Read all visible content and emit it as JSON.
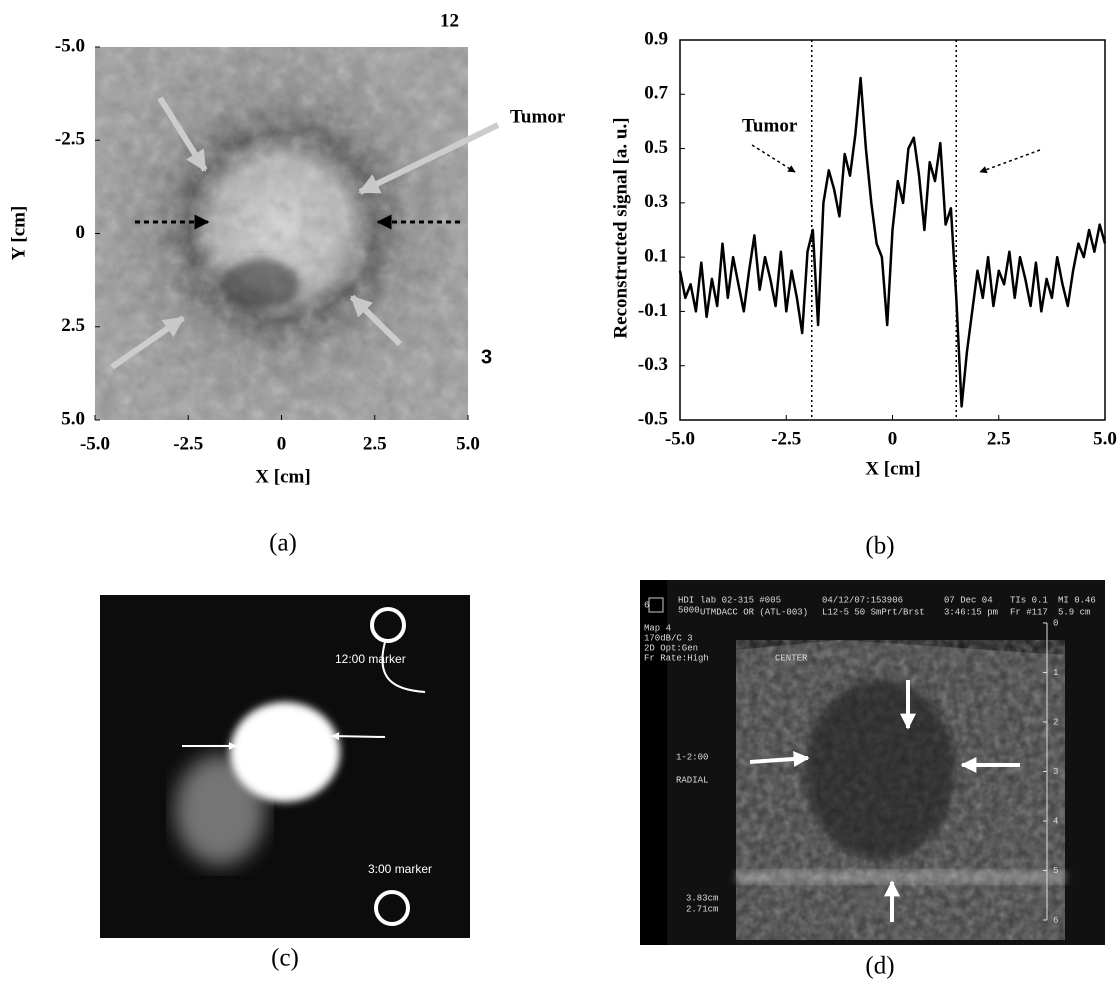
{
  "chart_data": [
    {
      "type": "image",
      "xlabel": "X [cm]",
      "ylabel": "Y [cm]",
      "xlim": [
        -5,
        5
      ],
      "ylim": [
        -5,
        5
      ],
      "y_inverted": true,
      "xticks": [
        {
          "value": -5,
          "label": "-5.0"
        },
        -2.5,
        0,
        2.5,
        {
          "value": 5,
          "label": "5.0"
        }
      ],
      "yticks": [
        {
          "value": -5,
          "label": "-5.0"
        },
        -2.5,
        0,
        2.5,
        {
          "value": 5,
          "label": "5.0"
        }
      ],
      "annotations": [
        "12",
        "3",
        "Tumor"
      ],
      "caption": "(a)"
    },
    {
      "type": "line",
      "xlabel": "X [cm]",
      "ylabel": "Reconstructed signal  [a. u.]",
      "xlim": [
        -5,
        5
      ],
      "ylim": [
        -0.5,
        0.9
      ],
      "xticks": [
        {
          "value": -5,
          "label": "-5.0"
        },
        -2.5,
        0,
        2.5,
        {
          "value": 5,
          "label": "5.0"
        }
      ],
      "yticks": [
        0.9,
        0.7,
        0.5,
        0.3,
        0.1,
        -0.1,
        -0.3,
        -0.5
      ],
      "vlines": [
        -1.9,
        1.5
      ],
      "annotation": "Tumor",
      "color": "#000000",
      "caption": "(b)",
      "x": [
        -5.0,
        -4.875,
        -4.75,
        -4.625,
        -4.5,
        -4.375,
        -4.25,
        -4.125,
        -4.0,
        -3.875,
        -3.75,
        -3.625,
        -3.5,
        -3.375,
        -3.25,
        -3.125,
        -3.0,
        -2.875,
        -2.75,
        -2.625,
        -2.5,
        -2.375,
        -2.25,
        -2.125,
        -2.0,
        -1.875,
        -1.75,
        -1.625,
        -1.5,
        -1.375,
        -1.25,
        -1.125,
        -1.0,
        -0.875,
        -0.75,
        -0.625,
        -0.5,
        -0.375,
        -0.25,
        -0.125,
        0.0,
        0.125,
        0.25,
        0.375,
        0.5,
        0.625,
        0.75,
        0.875,
        1.0,
        1.125,
        1.25,
        1.375,
        1.5,
        1.625,
        1.75,
        1.875,
        2.0,
        2.125,
        2.25,
        2.375,
        2.5,
        2.625,
        2.75,
        2.875,
        3.0,
        3.125,
        3.25,
        3.375,
        3.5,
        3.625,
        3.75,
        3.875,
        4.0,
        4.125,
        4.25,
        4.375,
        4.5,
        4.625,
        4.75,
        4.875,
        5.0
      ],
      "values": [
        0.05,
        -0.05,
        0.0,
        -0.1,
        0.08,
        -0.12,
        0.02,
        -0.08,
        0.15,
        -0.05,
        0.1,
        0.0,
        -0.1,
        0.05,
        0.18,
        -0.02,
        0.1,
        0.02,
        -0.08,
        0.12,
        -0.1,
        0.05,
        -0.05,
        -0.18,
        0.12,
        0.2,
        -0.15,
        0.3,
        0.42,
        0.35,
        0.25,
        0.48,
        0.4,
        0.55,
        0.76,
        0.5,
        0.3,
        0.15,
        0.1,
        -0.15,
        0.2,
        0.38,
        0.3,
        0.5,
        0.54,
        0.4,
        0.2,
        0.45,
        0.38,
        0.52,
        0.22,
        0.28,
        -0.05,
        -0.45,
        -0.25,
        -0.1,
        0.05,
        -0.05,
        0.1,
        -0.08,
        0.05,
        0.0,
        0.12,
        -0.05,
        0.1,
        0.02,
        -0.08,
        0.08,
        -0.1,
        0.02,
        -0.05,
        0.1,
        0.0,
        -0.08,
        0.05,
        0.15,
        0.1,
        0.2,
        0.12,
        0.22,
        0.15
      ]
    }
  ],
  "images": {
    "c": {
      "labels": [
        "12:00 marker",
        "3:00 marker"
      ],
      "caption": "(c)"
    },
    "d": {
      "corner": "6",
      "logo": [
        "HDI",
        "5000"
      ],
      "header": [
        "lab 02-315  #005",
        "UTMDACC OR (ATL-003)",
        "04/12/07:153906",
        "L12-5 50 SmPrt/Brst",
        "07 Dec 04",
        "3:46:15 pm",
        "TIs 0.1",
        "Fr #117",
        "MI 0.46",
        "5.9 cm"
      ],
      "settings": [
        "Map 4",
        "170dB/C 3",
        "2D Opt:Gen",
        "Fr Rate:High"
      ],
      "labels": [
        "CENTER",
        "1-2:00",
        "RADIAL"
      ],
      "measurements": [
        "3.83cm",
        "2.71cm"
      ],
      "depth_ticks": [
        0,
        1,
        2,
        3,
        4,
        5,
        6
      ],
      "caption": "(d)"
    }
  }
}
